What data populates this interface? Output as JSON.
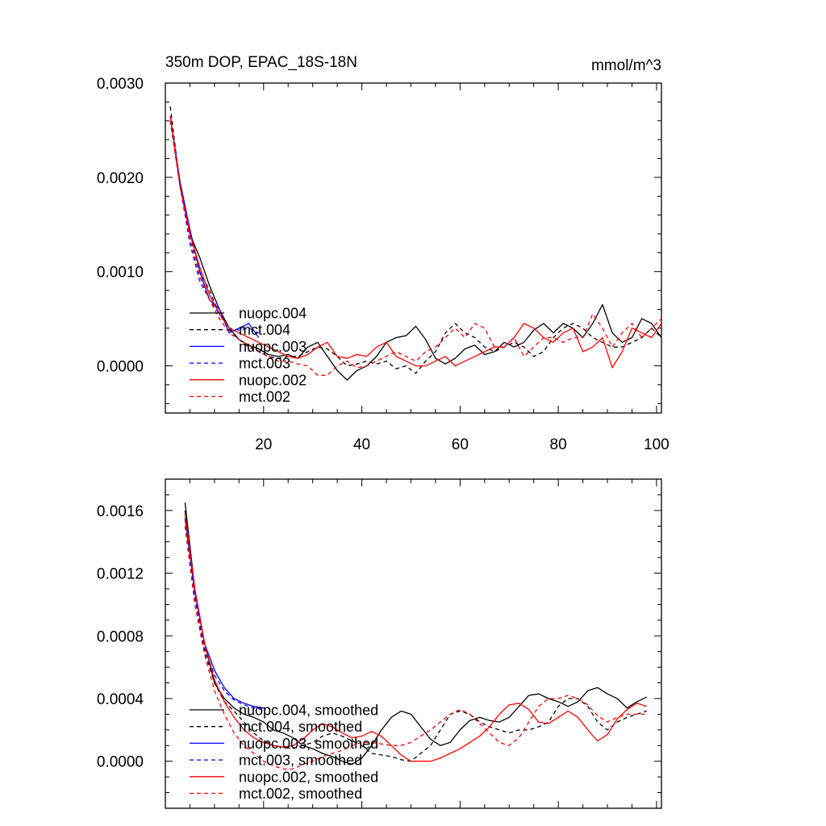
{
  "figure": {
    "title": "350m DOP, EPAC_18S-18N",
    "units": "mmol/m^3"
  },
  "chart_data": [
    {
      "type": "line",
      "title": "350m DOP, EPAC_18S-18N",
      "units_label": "mmol/m^3",
      "xlabel": "",
      "ylabel": "",
      "xlim": [
        0,
        101
      ],
      "ylim": [
        -0.0005,
        0.003
      ],
      "xticks": [
        20,
        40,
        60,
        80,
        100
      ],
      "xtick_labels": [
        "20",
        "40",
        "60",
        "80",
        "100"
      ],
      "yticks": [
        0.0,
        0.001,
        0.002,
        0.003
      ],
      "ytick_labels": [
        "0.0000",
        "0.0010",
        "0.0020",
        "0.0030"
      ],
      "legend_position": "lower-left",
      "series": [
        {
          "name": "nuopc.004",
          "color": "#000000",
          "dash": "solid",
          "x": [
            1,
            3,
            5,
            7,
            9,
            11,
            13,
            15,
            17,
            19,
            21,
            23,
            25,
            27,
            29,
            31,
            33,
            35,
            37,
            39,
            41,
            43,
            45,
            47,
            49,
            51,
            53,
            55,
            57,
            59,
            61,
            63,
            65,
            67,
            69,
            71,
            73,
            75,
            77,
            79,
            81,
            83,
            85,
            87,
            89,
            91,
            93,
            95,
            97,
            99,
            101
          ],
          "y": [
            0.00265,
            0.0019,
            0.0014,
            0.00115,
            0.00085,
            0.0006,
            0.0004,
            0.00028,
            0.00022,
            0.00018,
            0.00012,
            0.0001,
            0.00012,
            8e-05,
            0.0002,
            0.00025,
            0.0001,
            -5e-05,
            -0.00015,
            -5e-05,
            0.0,
            0.0001,
            0.00025,
            0.0003,
            0.00032,
            0.00042,
            0.00028,
            8e-05,
            2e-05,
            8e-05,
            0.00018,
            0.00022,
            0.00012,
            0.00015,
            0.00025,
            0.0002,
            0.00025,
            0.00038,
            0.00045,
            0.00035,
            0.00045,
            0.0004,
            0.0003,
            0.00045,
            0.00065,
            0.00035,
            0.00025,
            0.0003,
            0.0005,
            0.00045,
            0.0003
          ]
        },
        {
          "name": "mct.004",
          "color": "#000000",
          "dash": "dashed",
          "x": [
            1,
            3,
            5,
            7,
            9,
            11,
            13,
            15,
            17,
            19,
            21,
            23,
            25,
            27,
            29,
            31,
            33,
            35,
            37,
            39,
            41,
            43,
            45,
            47,
            49,
            51,
            53,
            55,
            57,
            59,
            61,
            63,
            65,
            67,
            69,
            71,
            73,
            75,
            77,
            79,
            81,
            83,
            85,
            87,
            89,
            91,
            93,
            95,
            97,
            99,
            101
          ],
          "y": [
            0.00275,
            0.0019,
            0.0014,
            0.001,
            0.0008,
            0.00055,
            0.00038,
            0.00028,
            0.0002,
            0.00015,
            0.0001,
            8e-05,
            0.0001,
            0.0001,
            0.00015,
            0.0002,
            0.00018,
            0.0001,
            0.0,
            2e-05,
            5e-05,
            2e-05,
            5e-05,
            -3e-05,
            0.0,
            -8e-05,
            5e-05,
            0.00015,
            0.00035,
            0.00045,
            0.00035,
            0.0003,
            0.0002,
            0.00015,
            0.0002,
            0.00025,
            0.0002,
            0.0001,
            0.00015,
            0.0003,
            0.0004,
            0.00045,
            0.0004,
            0.0003,
            0.00025,
            0.0002,
            0.0002,
            0.00025,
            0.0003,
            0.0004,
            0.0003
          ]
        },
        {
          "name": "nuopc.003",
          "color": "#0000ff",
          "dash": "solid",
          "x": [
            1,
            3,
            5,
            7,
            9,
            11,
            13,
            15,
            17,
            19
          ],
          "y": [
            0.00265,
            0.00195,
            0.00145,
            0.001,
            0.0007,
            0.0006,
            0.00035,
            0.0004,
            0.00045,
            0.0003
          ]
        },
        {
          "name": "mct.003",
          "color": "#0000ff",
          "dash": "dashed",
          "x": [
            1,
            3,
            5,
            7,
            9,
            11,
            13,
            15,
            17,
            19
          ],
          "y": [
            0.0026,
            0.0019,
            0.0013,
            0.0009,
            0.0007,
            0.00055,
            0.0004,
            0.00038,
            0.0004,
            0.00035
          ]
        },
        {
          "name": "nuopc.002",
          "color": "#ff0000",
          "dash": "solid",
          "x": [
            1,
            3,
            5,
            7,
            9,
            11,
            13,
            15,
            17,
            19,
            21,
            23,
            25,
            27,
            29,
            31,
            33,
            35,
            37,
            39,
            41,
            43,
            45,
            47,
            49,
            51,
            53,
            55,
            57,
            59,
            61,
            63,
            65,
            67,
            69,
            71,
            73,
            75,
            77,
            79,
            81,
            83,
            85,
            87,
            89,
            91,
            93,
            95,
            97,
            99,
            101
          ],
          "y": [
            0.00265,
            0.0019,
            0.0014,
            0.00105,
            0.00075,
            0.00055,
            0.0004,
            0.00035,
            0.0003,
            0.00025,
            0.0002,
            0.00015,
            0.0001,
            8e-05,
            0.00012,
            0.0002,
            0.00025,
            0.0001,
            8e-05,
            0.00012,
            0.0001,
            0.0002,
            0.00025,
            0.0001,
            5e-05,
            0.0,
            0.0,
            5e-05,
            0.0001,
            0.0,
            5e-05,
            0.0001,
            0.00015,
            0.0002,
            0.0002,
            0.0003,
            0.00045,
            0.0004,
            0.0003,
            0.00025,
            0.00035,
            0.0004,
            0.00015,
            0.0002,
            0.0003,
            -2e-05,
            0.00015,
            0.0004,
            0.00035,
            0.0003,
            0.00045
          ]
        },
        {
          "name": "mct.002",
          "color": "#ff0000",
          "dash": "dashed",
          "x": [
            1,
            3,
            5,
            7,
            9,
            11,
            13,
            15,
            17,
            19,
            21,
            23,
            25,
            27,
            29,
            31,
            33,
            35,
            37,
            39,
            41,
            43,
            45,
            47,
            49,
            51,
            53,
            55,
            57,
            59,
            61,
            63,
            65,
            67,
            69,
            71,
            73,
            75,
            77,
            79,
            81,
            83,
            85,
            87,
            89,
            91,
            93,
            95,
            97,
            99,
            101
          ],
          "y": [
            0.0026,
            0.0019,
            0.00135,
            0.00095,
            0.0007,
            0.0005,
            0.00035,
            0.00028,
            0.00022,
            0.00015,
            0.0001,
            5e-05,
            5e-05,
            2e-05,
            0.0,
            -0.0001,
            -0.0001,
            0.0,
            5e-05,
            -2e-05,
            0.0,
            5e-05,
            0.0001,
            0.00015,
            0.0001,
            5e-05,
            0.00015,
            0.0002,
            0.0003,
            0.0004,
            0.0003,
            0.00045,
            0.0004,
            0.0002,
            0.0002,
            0.0003,
            0.0001,
            0.0002,
            0.0003,
            0.0003,
            0.00025,
            0.0003,
            0.0003,
            0.00055,
            0.0004,
            0.0002,
            0.00035,
            0.00045,
            0.0003,
            0.0004,
            0.0005
          ]
        }
      ]
    },
    {
      "type": "line",
      "title": "",
      "xlabel": "",
      "ylabel": "",
      "xlim": [
        0,
        101
      ],
      "ylim": [
        -0.0003,
        0.0018
      ],
      "xticks": [
        20,
        40,
        60,
        80,
        100
      ],
      "xtick_labels": [],
      "yticks": [
        0.0,
        0.0004,
        0.0008,
        0.0012,
        0.0016
      ],
      "ytick_labels": [
        "0.0000",
        "0.0004",
        "0.0008",
        "0.0012",
        "0.0016"
      ],
      "legend_position": "lower-left",
      "series": [
        {
          "name": "nuopc.004, smoothed",
          "color": "#000000",
          "dash": "solid",
          "x": [
            4,
            6,
            8,
            10,
            12,
            14,
            16,
            18,
            20,
            22,
            24,
            26,
            28,
            30,
            32,
            34,
            36,
            38,
            40,
            42,
            44,
            46,
            48,
            50,
            52,
            54,
            56,
            58,
            60,
            62,
            64,
            66,
            68,
            70,
            72,
            74,
            76,
            78,
            80,
            82,
            84,
            86,
            88,
            90,
            92,
            94,
            96,
            98
          ],
          "y": [
            0.00165,
            0.0011,
            0.00075,
            0.0005,
            0.0004,
            0.00034,
            0.0003,
            0.00028,
            0.00025,
            0.0002,
            0.00018,
            0.00015,
            0.0001,
            8e-05,
            5e-05,
            3e-05,
            0.0,
            -2e-05,
            2e-05,
            0.0001,
            0.0002,
            0.00028,
            0.00032,
            0.0003,
            0.00022,
            0.00014,
            0.0001,
            0.00012,
            0.0002,
            0.00026,
            0.00028,
            0.00026,
            0.00025,
            0.00028,
            0.00035,
            0.00042,
            0.00043,
            0.0004,
            0.00038,
            0.00035,
            0.00038,
            0.00045,
            0.00047,
            0.00043,
            0.0004,
            0.00034,
            0.00038,
            0.00041
          ]
        },
        {
          "name": "mct.004, smoothed",
          "color": "#000000",
          "dash": "dashed",
          "x": [
            4,
            6,
            8,
            10,
            12,
            14,
            16,
            18,
            20,
            22,
            24,
            26,
            28,
            30,
            32,
            34,
            36,
            38,
            40,
            42,
            44,
            46,
            48,
            50,
            52,
            54,
            56,
            58,
            60,
            62,
            64,
            66,
            68,
            70,
            72,
            74,
            76,
            78,
            80,
            82,
            84,
            86,
            88,
            90,
            92,
            94,
            96,
            98
          ],
          "y": [
            0.0016,
            0.00105,
            0.0007,
            0.0005,
            0.00038,
            0.00032,
            0.00025,
            0.00018,
            0.00013,
            0.0001,
            9e-05,
            8e-05,
            0.0001,
            0.00012,
            0.00016,
            0.00018,
            0.00016,
            0.00013,
            0.0001,
            5e-05,
            4e-05,
            3e-05,
            1e-05,
            0.0,
            5e-05,
            0.0001,
            0.0002,
            0.0003,
            0.00032,
            0.0003,
            0.00025,
            0.00022,
            0.0002,
            0.00018,
            0.0002,
            0.0002,
            0.00022,
            0.00025,
            0.00035,
            0.0004,
            0.0004,
            0.00035,
            0.00025,
            0.0002,
            0.00025,
            0.00028,
            0.0003,
            0.00032
          ]
        },
        {
          "name": "nuopc.003, smoothed",
          "color": "#0000ff",
          "dash": "solid",
          "x": [
            4,
            6,
            8,
            10,
            12,
            14,
            16,
            18,
            20
          ],
          "y": [
            0.00155,
            0.00108,
            0.00075,
            0.00058,
            0.00047,
            0.0004,
            0.00037,
            0.00035,
            0.00034
          ]
        },
        {
          "name": "mct.003, smoothed",
          "color": "#0000ff",
          "dash": "dashed",
          "x": [
            4,
            6,
            8,
            10,
            12,
            14,
            16,
            18,
            20
          ],
          "y": [
            0.00155,
            0.00105,
            0.00072,
            0.00055,
            0.00045,
            0.00039,
            0.00036,
            0.00034,
            0.00033
          ]
        },
        {
          "name": "nuopc.002, smoothed",
          "color": "#ff0000",
          "dash": "solid",
          "x": [
            4,
            6,
            8,
            10,
            12,
            14,
            16,
            18,
            20,
            22,
            24,
            26,
            28,
            30,
            32,
            34,
            36,
            38,
            40,
            42,
            44,
            46,
            48,
            50,
            52,
            54,
            56,
            58,
            60,
            62,
            64,
            66,
            68,
            70,
            72,
            74,
            76,
            78,
            80,
            82,
            84,
            86,
            88,
            90,
            92,
            94,
            96,
            98
          ],
          "y": [
            0.00158,
            0.0011,
            0.00075,
            0.00052,
            0.00038,
            0.00028,
            0.0002,
            0.00015,
            0.00012,
            0.0001,
            9e-05,
            0.0001,
            0.00014,
            0.0002,
            0.00024,
            0.00022,
            0.00018,
            0.00015,
            0.00016,
            0.00019,
            0.00016,
            0.0001,
            4e-05,
            0.0,
            0.0,
            0.0,
            2e-05,
            5e-05,
            8e-05,
            0.00012,
            0.00016,
            0.00022,
            0.0003,
            0.00036,
            0.00037,
            0.00033,
            0.00025,
            0.00024,
            0.00028,
            0.00032,
            0.00028,
            0.0002,
            0.00013,
            0.00017,
            0.00027,
            0.00033,
            0.00037,
            0.00035
          ]
        },
        {
          "name": "mct.002, smoothed",
          "color": "#ff0000",
          "dash": "dashed",
          "x": [
            4,
            6,
            8,
            10,
            12,
            14,
            16,
            18,
            20,
            22,
            24,
            26,
            28,
            30,
            32,
            34,
            36,
            38,
            40,
            42,
            44,
            46,
            48,
            50,
            52,
            54,
            56,
            58,
            60,
            62,
            64,
            66,
            68,
            70,
            72,
            74,
            76,
            78,
            80,
            82,
            84,
            86,
            88,
            90,
            92,
            94,
            96,
            98
          ],
          "y": [
            0.0015,
            0.001,
            0.00068,
            0.00045,
            0.0003,
            0.00018,
            0.0001,
            5e-05,
            0.0,
            -3e-05,
            -5e-05,
            -5e-05,
            -2e-05,
            0.0,
            3e-05,
            5e-05,
            7e-05,
            0.0001,
            0.00012,
            0.00012,
            0.00011,
            0.0001,
            0.0001,
            0.00012,
            0.00016,
            0.0002,
            0.00025,
            0.0003,
            0.00033,
            0.0003,
            0.00024,
            0.00018,
            0.00012,
            0.0001,
            0.00015,
            0.00025,
            0.00035,
            0.0004,
            0.0004,
            0.00042,
            0.0004,
            0.00036,
            0.00029,
            0.00025,
            0.00028,
            0.0003,
            0.0003,
            0.0003
          ]
        }
      ]
    }
  ]
}
